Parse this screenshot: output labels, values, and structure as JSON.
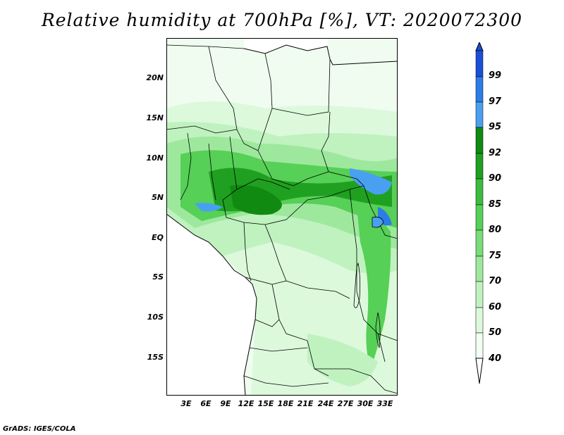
{
  "title": "Relative humidity at 700hPa [%], VT: 2020072300",
  "credit": "GrADS: IGES/COLA",
  "map": {
    "lat_labels": [
      "20N",
      "15N",
      "10N",
      "5N",
      "EQ",
      "5S",
      "10S",
      "15S"
    ],
    "lon_labels": [
      "3E",
      "6E",
      "9E",
      "12E",
      "15E",
      "18E",
      "21E",
      "24E",
      "27E",
      "30E",
      "33E"
    ],
    "variable": "Relative humidity",
    "level": "700hPa",
    "units": "%",
    "valid_time": "2020072300"
  },
  "colorbar": {
    "levels": [
      "99",
      "97",
      "95",
      "92",
      "90",
      "85",
      "80",
      "75",
      "70",
      "60",
      "50",
      "40"
    ],
    "colors": [
      "#1a4fd6",
      "#2c7ce8",
      "#4aa0f0",
      "#108a10",
      "#20a020",
      "#3cbc3c",
      "#56d056",
      "#78dc78",
      "#9ee89e",
      "#bff2bf",
      "#dcf9dc",
      "#f2fff2"
    ],
    "ocean_color": "#ffffff"
  }
}
